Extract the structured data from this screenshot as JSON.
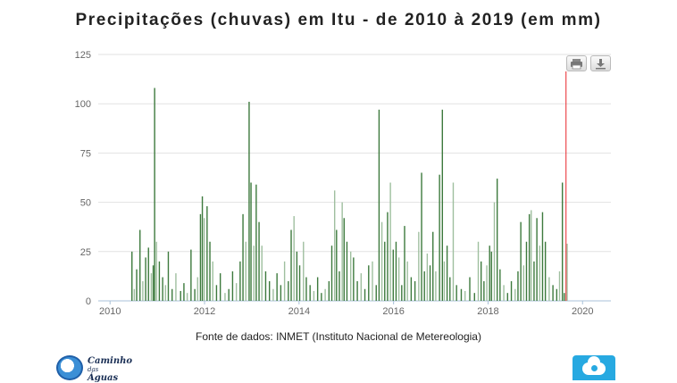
{
  "chart_data": {
    "type": "bar",
    "title": "Precipitações (chuvas) em Itu - de 2010 à 2019 (em mm)",
    "xlabel": "",
    "ylabel": "",
    "x_ticks": [
      "2010",
      "2012",
      "2014",
      "2016",
      "2018",
      "2020"
    ],
    "y_ticks": [
      0,
      25,
      50,
      75,
      100,
      125
    ],
    "xlim": [
      2009.75,
      2020.6
    ],
    "ylim": [
      0,
      125
    ],
    "grid": true,
    "series_color": "#3d7a3d",
    "marker": {
      "x": 2019.65,
      "color": "#e8262a"
    },
    "approximate_daily_values": [
      [
        2010.45,
        25
      ],
      [
        2010.5,
        6
      ],
      [
        2010.55,
        16
      ],
      [
        2010.62,
        36
      ],
      [
        2010.68,
        10
      ],
      [
        2010.74,
        22
      ],
      [
        2010.8,
        27
      ],
      [
        2010.86,
        14
      ],
      [
        2010.9,
        18
      ],
      [
        2010.93,
        108
      ],
      [
        2010.97,
        30
      ],
      [
        2011.03,
        20
      ],
      [
        2011.1,
        12
      ],
      [
        2011.16,
        8
      ],
      [
        2011.22,
        25
      ],
      [
        2011.3,
        6
      ],
      [
        2011.38,
        14
      ],
      [
        2011.48,
        5
      ],
      [
        2011.55,
        9
      ],
      [
        2011.62,
        4
      ],
      [
        2011.7,
        26
      ],
      [
        2011.78,
        6
      ],
      [
        2011.84,
        12
      ],
      [
        2011.9,
        44
      ],
      [
        2011.94,
        53
      ],
      [
        2011.98,
        42
      ],
      [
        2012.04,
        48
      ],
      [
        2012.1,
        30
      ],
      [
        2012.16,
        20
      ],
      [
        2012.24,
        8
      ],
      [
        2012.32,
        14
      ],
      [
        2012.42,
        4
      ],
      [
        2012.5,
        6
      ],
      [
        2012.58,
        15
      ],
      [
        2012.66,
        9
      ],
      [
        2012.74,
        20
      ],
      [
        2012.8,
        44
      ],
      [
        2012.86,
        30
      ],
      [
        2012.93,
        101
      ],
      [
        2012.97,
        60
      ],
      [
        2013.03,
        28
      ],
      [
        2013.08,
        59
      ],
      [
        2013.14,
        40
      ],
      [
        2013.2,
        28
      ],
      [
        2013.28,
        15
      ],
      [
        2013.36,
        10
      ],
      [
        2013.44,
        6
      ],
      [
        2013.52,
        14
      ],
      [
        2013.6,
        8
      ],
      [
        2013.68,
        20
      ],
      [
        2013.76,
        10
      ],
      [
        2013.82,
        36
      ],
      [
        2013.88,
        43
      ],
      [
        2013.94,
        25
      ],
      [
        2014.0,
        18
      ],
      [
        2014.08,
        30
      ],
      [
        2014.14,
        12
      ],
      [
        2014.22,
        8
      ],
      [
        2014.3,
        5
      ],
      [
        2014.38,
        12
      ],
      [
        2014.46,
        4
      ],
      [
        2014.54,
        6
      ],
      [
        2014.62,
        10
      ],
      [
        2014.68,
        28
      ],
      [
        2014.74,
        56
      ],
      [
        2014.78,
        36
      ],
      [
        2014.84,
        15
      ],
      [
        2014.9,
        50
      ],
      [
        2014.94,
        42
      ],
      [
        2015.0,
        30
      ],
      [
        2015.08,
        25
      ],
      [
        2015.14,
        22
      ],
      [
        2015.22,
        10
      ],
      [
        2015.3,
        14
      ],
      [
        2015.38,
        6
      ],
      [
        2015.46,
        18
      ],
      [
        2015.54,
        20
      ],
      [
        2015.62,
        8
      ],
      [
        2015.68,
        97
      ],
      [
        2015.74,
        40
      ],
      [
        2015.8,
        30
      ],
      [
        2015.86,
        45
      ],
      [
        2015.92,
        60
      ],
      [
        2015.98,
        26
      ],
      [
        2016.04,
        30
      ],
      [
        2016.1,
        22
      ],
      [
        2016.16,
        8
      ],
      [
        2016.22,
        38
      ],
      [
        2016.28,
        20
      ],
      [
        2016.36,
        12
      ],
      [
        2016.44,
        10
      ],
      [
        2016.52,
        35
      ],
      [
        2016.58,
        65
      ],
      [
        2016.64,
        15
      ],
      [
        2016.7,
        24
      ],
      [
        2016.76,
        18
      ],
      [
        2016.82,
        35
      ],
      [
        2016.88,
        15
      ],
      [
        2016.96,
        64
      ],
      [
        2017.02,
        97
      ],
      [
        2017.06,
        20
      ],
      [
        2017.12,
        28
      ],
      [
        2017.18,
        12
      ],
      [
        2017.25,
        60
      ],
      [
        2017.32,
        8
      ],
      [
        2017.42,
        6
      ],
      [
        2017.5,
        5
      ],
      [
        2017.6,
        12
      ],
      [
        2017.7,
        4
      ],
      [
        2017.78,
        30
      ],
      [
        2017.84,
        20
      ],
      [
        2017.9,
        10
      ],
      [
        2017.96,
        18
      ],
      [
        2018.02,
        28
      ],
      [
        2018.06,
        25
      ],
      [
        2018.12,
        50
      ],
      [
        2018.18,
        62
      ],
      [
        2018.24,
        16
      ],
      [
        2018.32,
        8
      ],
      [
        2018.4,
        4
      ],
      [
        2018.48,
        10
      ],
      [
        2018.56,
        6
      ],
      [
        2018.62,
        15
      ],
      [
        2018.68,
        40
      ],
      [
        2018.74,
        18
      ],
      [
        2018.8,
        30
      ],
      [
        2018.86,
        44
      ],
      [
        2018.9,
        46
      ],
      [
        2018.96,
        20
      ],
      [
        2019.02,
        42
      ],
      [
        2019.08,
        28
      ],
      [
        2019.14,
        45
      ],
      [
        2019.2,
        30
      ],
      [
        2019.28,
        12
      ],
      [
        2019.36,
        8
      ],
      [
        2019.44,
        6
      ],
      [
        2019.5,
        15
      ],
      [
        2019.56,
        60
      ],
      [
        2019.6,
        4
      ],
      [
        2019.66,
        29
      ]
    ]
  },
  "toolbar": {
    "print_icon": "print-icon",
    "download_icon": "download-icon"
  },
  "source_text": "Fonte de dados: INMET (Instituto Nacional de Metereologia)",
  "logo_left": {
    "line1": "Caminho",
    "line2": "das",
    "line3": "Águas"
  },
  "logo_right_icon": "cloud-icon"
}
